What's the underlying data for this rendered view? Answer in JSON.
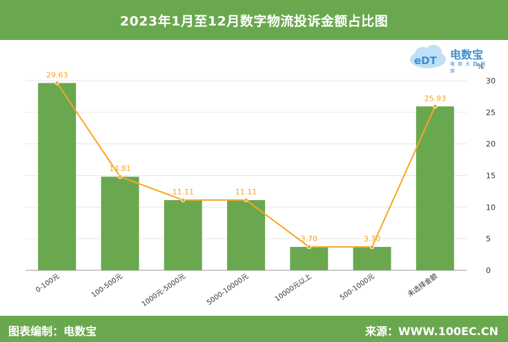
{
  "header": {
    "title": "2023年1月至12月数字物流投诉金额占比图"
  },
  "footer": {
    "left": "图表编制：电数宝",
    "right": "来源：WWW.100EC.CN"
  },
  "logo": {
    "name": "电数宝",
    "subtitle": "电商大数据库",
    "mark": "eDT"
  },
  "colors": {
    "bar": "#6aa84f",
    "line": "#f5a623",
    "header": "#6aa84f"
  },
  "chart_data": {
    "type": "bar",
    "categories": [
      "0-100元",
      "100-500元",
      "1000元-5000元",
      "5000-10000元",
      "10000元以上",
      "500-1000元",
      "未选择金额"
    ],
    "values": [
      29.63,
      14.81,
      11.11,
      11.11,
      3.7,
      3.7,
      25.93
    ],
    "data_labels": [
      "29.63",
      "14.81",
      "11.11",
      "11.11",
      "3.70",
      "3.70",
      "25.93"
    ],
    "overlay_line": true,
    "yunit": "%",
    "ylim": [
      0,
      30
    ],
    "yticks": [
      0,
      5,
      10,
      15,
      20,
      25,
      30
    ],
    "yaxis_position": "right",
    "grid": true
  }
}
